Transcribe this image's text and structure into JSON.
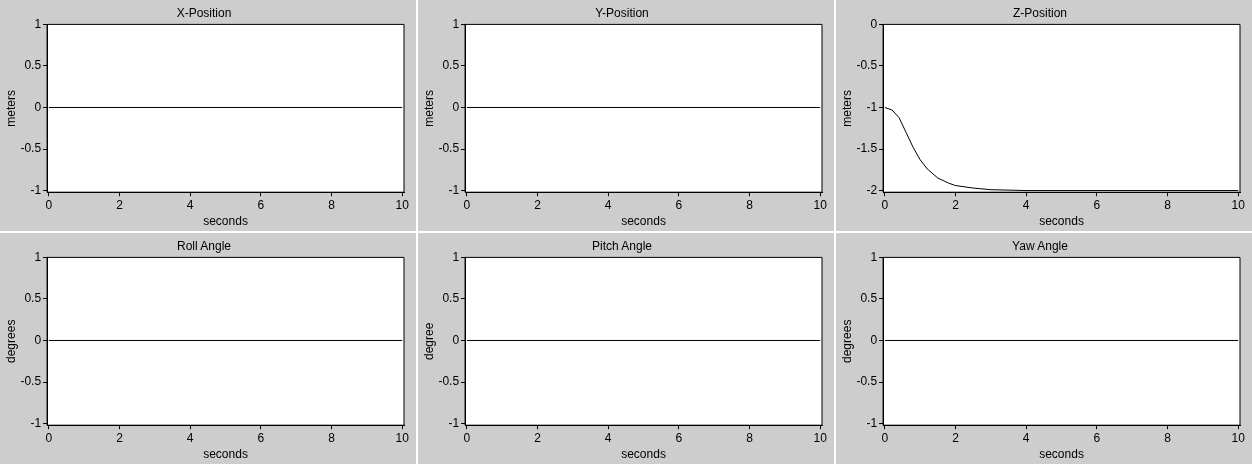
{
  "chart_data": [
    {
      "type": "line",
      "title": "X-Position",
      "xlabel": "seconds",
      "ylabel": "meters",
      "x": [
        0,
        10
      ],
      "series": [
        {
          "color": "#000000",
          "values": [
            0,
            0
          ]
        }
      ],
      "xlim": [
        -0.05,
        10.05
      ],
      "ylim": [
        -1.02,
        1
      ],
      "xticks": [
        0,
        2,
        4,
        6,
        8,
        10
      ],
      "yticks": [
        -1,
        -0.5,
        0,
        0.5,
        1
      ],
      "grid": false,
      "legend": false
    },
    {
      "type": "line",
      "title": "Y-Position",
      "xlabel": "seconds",
      "ylabel": "meters",
      "x": [
        0,
        10
      ],
      "series": [
        {
          "color": "#000000",
          "values": [
            0,
            0
          ]
        }
      ],
      "xlim": [
        -0.05,
        10.05
      ],
      "ylim": [
        -1.02,
        1
      ],
      "xticks": [
        0,
        2,
        4,
        6,
        8,
        10
      ],
      "yticks": [
        -1,
        -0.5,
        0,
        0.5,
        1
      ],
      "grid": false,
      "legend": false
    },
    {
      "type": "line",
      "title": "Z-Position",
      "xlabel": "seconds",
      "ylabel": "meters",
      "x": [
        0,
        0.2,
        0.4,
        0.6,
        0.8,
        1,
        1.2,
        1.5,
        1.8,
        2,
        2.5,
        3,
        4,
        10
      ],
      "series": [
        {
          "color": "#000000",
          "values": [
            -1,
            -1.03,
            -1.12,
            -1.3,
            -1.48,
            -1.63,
            -1.74,
            -1.85,
            -1.91,
            -1.94,
            -1.97,
            -1.99,
            -2,
            -2
          ]
        }
      ],
      "xlim": [
        -0.05,
        10.05
      ],
      "ylim": [
        -2.02,
        0
      ],
      "xticks": [
        0,
        2,
        4,
        6,
        8,
        10
      ],
      "yticks": [
        -2,
        -1.5,
        -1,
        -0.5,
        0
      ],
      "grid": false,
      "legend": false
    },
    {
      "type": "line",
      "title": "Roll Angle",
      "xlabel": "seconds",
      "ylabel": "degrees",
      "x": [
        0,
        10
      ],
      "series": [
        {
          "color": "#000000",
          "values": [
            0,
            0
          ]
        }
      ],
      "xlim": [
        -0.05,
        10.05
      ],
      "ylim": [
        -1.02,
        1
      ],
      "xticks": [
        0,
        2,
        4,
        6,
        8,
        10
      ],
      "yticks": [
        -1,
        -0.5,
        0,
        0.5,
        1
      ],
      "grid": false,
      "legend": false
    },
    {
      "type": "line",
      "title": "Pitch Angle",
      "xlabel": "seconds",
      "ylabel": "degree",
      "x": [
        0,
        10
      ],
      "series": [
        {
          "color": "#000000",
          "values": [
            0,
            0
          ]
        }
      ],
      "xlim": [
        -0.05,
        10.05
      ],
      "ylim": [
        -1.02,
        1
      ],
      "xticks": [
        0,
        2,
        4,
        6,
        8,
        10
      ],
      "yticks": [
        -1,
        -0.5,
        0,
        0.5,
        1
      ],
      "grid": false,
      "legend": false
    },
    {
      "type": "line",
      "title": "Yaw Angle",
      "xlabel": "seconds",
      "ylabel": "degrees",
      "x": [
        0,
        10
      ],
      "series": [
        {
          "color": "#000000",
          "values": [
            0,
            0
          ]
        }
      ],
      "xlim": [
        -0.05,
        10.05
      ],
      "ylim": [
        -1.02,
        1
      ],
      "xticks": [
        0,
        2,
        4,
        6,
        8,
        10
      ],
      "yticks": [
        -1,
        -0.5,
        0,
        0.5,
        1
      ],
      "grid": false,
      "legend": false
    }
  ]
}
